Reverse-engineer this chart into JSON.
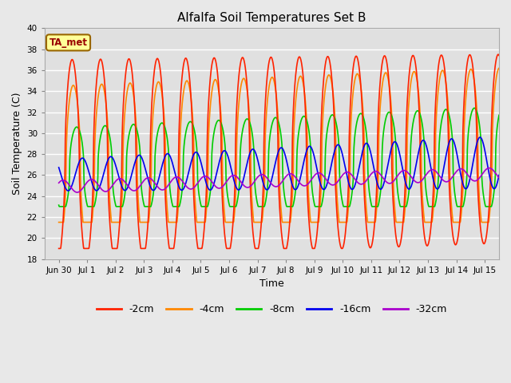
{
  "title": "Alfalfa Soil Temperatures Set B",
  "xlabel": "Time",
  "ylabel": "Soil Temperature (C)",
  "ylim": [
    18,
    40
  ],
  "yticks": [
    18,
    20,
    22,
    24,
    26,
    28,
    30,
    32,
    34,
    36,
    38,
    40
  ],
  "background_color": "#e8e8e8",
  "plot_bg_color": "#e0e0e0",
  "grid_color": "#ffffff",
  "annotation_text": "TA_met",
  "annotation_bg": "#ffff99",
  "annotation_border": "#996600",
  "annotation_text_color": "#990000",
  "series_colors": {
    "-2cm": "#ff2200",
    "-4cm": "#ff8800",
    "-8cm": "#00cc00",
    "-16cm": "#0000ee",
    "-32cm": "#aa00cc"
  },
  "n_days": 15.5,
  "start_day": -0.5,
  "xtick_labels": [
    "Jun 30",
    "Jul 1",
    "Jul 2",
    "Jul 3",
    "Jul 4",
    "Jul 5",
    "Jul 6",
    "Jul 7",
    "Jul 8",
    "Jul 9",
    "Jul 10",
    "Jul 11",
    "Jul 12",
    "Jul 13",
    "Jul 14",
    "Jul 15"
  ],
  "xtick_positions": [
    0,
    1,
    2,
    3,
    4,
    5,
    6,
    7,
    8,
    9,
    10,
    11,
    12,
    13,
    14,
    15
  ]
}
